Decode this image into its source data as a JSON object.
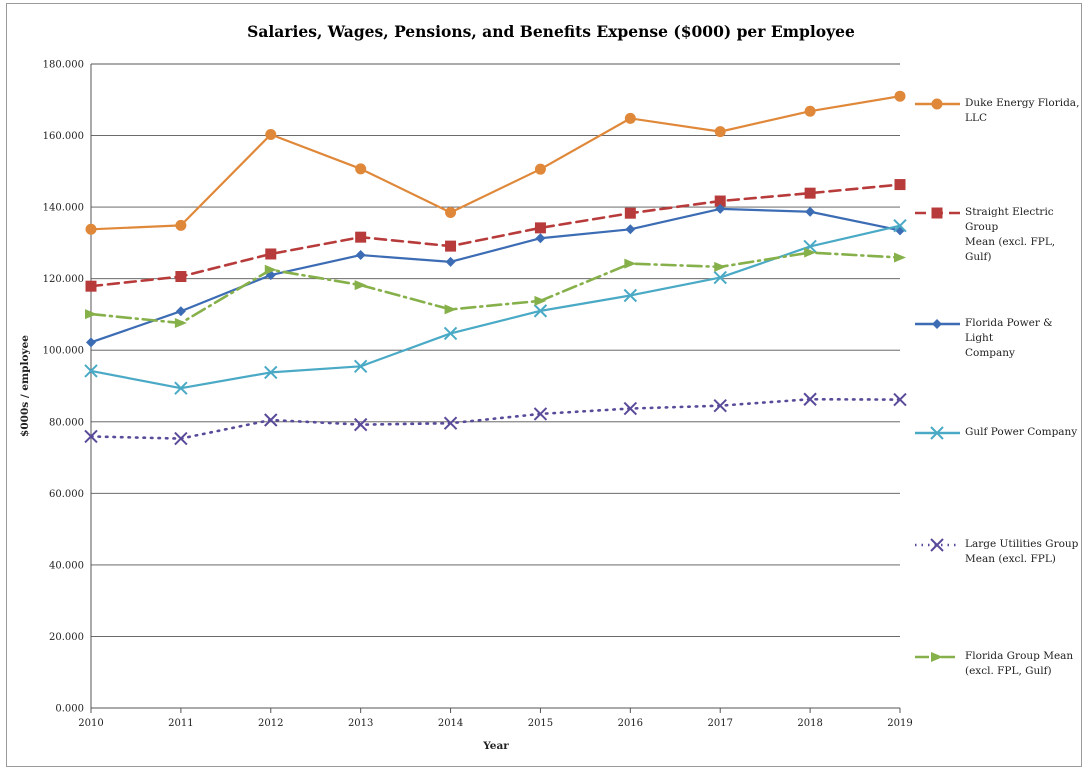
{
  "chart_data": {
    "type": "line",
    "title": "Salaries, Wages, Pensions, and Benefits Expense ($000) per Employee",
    "xlabel": "Year",
    "ylabel": "$000s / employee",
    "ylim": [
      0,
      180
    ],
    "grid": "horizontal",
    "legend_position": "right",
    "x": [
      2010,
      2011,
      2012,
      2013,
      2014,
      2015,
      2016,
      2017,
      2018,
      2019
    ],
    "x_tick_labels": [
      "2010",
      "2011",
      "2012",
      "2013",
      "2014",
      "2015",
      "2016",
      "2017",
      "2018",
      "2019"
    ],
    "y_ticks": [
      0,
      20,
      40,
      60,
      80,
      100,
      120,
      140,
      160,
      180
    ],
    "y_tick_labels": [
      "0.000",
      "20.000",
      "40.000",
      "60.000",
      "80.000",
      "100.000",
      "120.000",
      "140.000",
      "160.000",
      "180.000"
    ],
    "series": [
      {
        "name": "Duke Energy Florida, LLC",
        "legend_label": "Duke Energy Florida,\nLLC",
        "color": "#e0883a",
        "line": "solid",
        "marker": "circle",
        "values": [
          133.8,
          134.9,
          160.3,
          150.7,
          138.5,
          150.6,
          164.8,
          161.1,
          166.8,
          171.0
        ]
      },
      {
        "name": "Straight Electric Group Mean (excl. FPL, Gulf)",
        "legend_label": "Straight Electric Group\nMean (excl. FPL, Gulf)",
        "color": "#b83b3b",
        "line": "dashed",
        "marker": "square",
        "values": [
          117.9,
          120.6,
          126.9,
          131.6,
          129.1,
          134.2,
          138.3,
          141.7,
          143.9,
          146.3
        ]
      },
      {
        "name": "Florida Power & Light Company",
        "legend_label": "Florida Power & Light\nCompany",
        "color": "#3c6cb4",
        "line": "solid",
        "marker": "diamond",
        "values": [
          102.2,
          110.9,
          121.0,
          126.6,
          124.7,
          131.3,
          133.8,
          139.5,
          138.7,
          133.5
        ]
      },
      {
        "name": "Gulf Power Company",
        "legend_label": "Gulf Power Company",
        "color": "#4aaac6",
        "line": "solid",
        "marker": "x",
        "values": [
          94.2,
          89.4,
          93.8,
          95.5,
          104.7,
          111.0,
          115.3,
          120.3,
          129.0,
          134.8
        ]
      },
      {
        "name": "Large Utilities Group Mean (excl. FPL)",
        "legend_label": "Large Utilities Group\nMean (excl. FPL)",
        "color": "#5a4a9a",
        "line": "dotted",
        "marker": "x",
        "values": [
          75.9,
          75.3,
          80.5,
          79.2,
          79.6,
          82.2,
          83.7,
          84.5,
          86.3,
          86.2
        ]
      },
      {
        "name": "Florida Group Mean (excl. FPL, Gulf)",
        "legend_label": "Florida Group Mean\n(excl. FPL, Gulf)",
        "color": "#86b04a",
        "line": "dashdot",
        "marker": "triangle",
        "values": [
          110.1,
          107.6,
          122.5,
          118.2,
          111.4,
          113.8,
          124.2,
          123.3,
          127.3,
          125.9
        ]
      }
    ]
  }
}
